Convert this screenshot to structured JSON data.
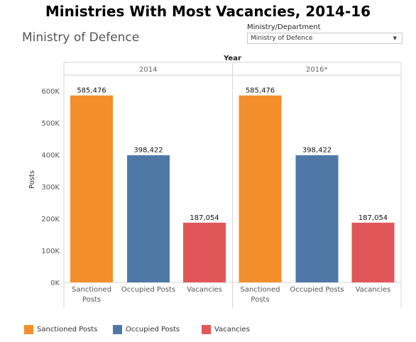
{
  "title": "Ministries With Most Vacancies, 2014-16",
  "subtitle": "Ministry of Defence",
  "filter": {
    "label": "Ministry/Department",
    "selected": "Ministry of Defence",
    "arrow_glyph": "▼"
  },
  "colors": {
    "sanctioned": "#F28E2B",
    "occupied": "#4E79A7",
    "vacancies": "#E15759"
  },
  "legend": [
    {
      "label": "Sanctioned Posts",
      "color": "#F28E2B"
    },
    {
      "label": "Occupied Posts",
      "color": "#4E79A7"
    },
    {
      "label": "Vacancies",
      "color": "#E15759"
    }
  ],
  "chart_data": {
    "type": "bar",
    "column_header": "Year",
    "ylabel": "Posts",
    "ylim": [
      0,
      600000
    ],
    "yticks": [
      0,
      100000,
      200000,
      300000,
      400000,
      500000,
      600000
    ],
    "ytick_labels": [
      "0K",
      "100K",
      "200K",
      "300K",
      "400K",
      "500K",
      "600K"
    ],
    "categories": [
      [
        "Sanctioned",
        "Posts"
      ],
      [
        "Occupied Posts"
      ],
      [
        "Vacancies"
      ]
    ],
    "panels": [
      {
        "name": "2014",
        "values": [
          585476,
          398422,
          187054
        ],
        "value_labels": [
          "585,476",
          "398,422",
          "187,054"
        ]
      },
      {
        "name": "2016*",
        "values": [
          585476,
          398422,
          187054
        ],
        "value_labels": [
          "585,476",
          "398,422",
          "187,054"
        ]
      }
    ],
    "bar_colors": [
      "#F28E2B",
      "#4E79A7",
      "#E15759"
    ],
    "grid": false,
    "legend_position": "bottom-left"
  }
}
